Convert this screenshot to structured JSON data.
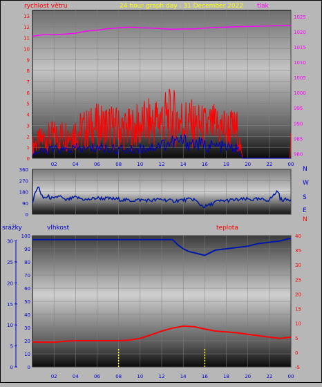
{
  "header": {
    "wind_title": "rychlost větru",
    "graph_title": "24 hour graph day : 31 December 2022",
    "pressure_title": "tlak"
  },
  "colors": {
    "wind": "#ff0000",
    "gust": "#ff0000",
    "wind_avg": "#0000c8",
    "pressure": "#ff00ff",
    "direction": "#001a9c",
    "humidity": "#0018a8",
    "temperature": "#ff0000",
    "rain": "#ffff00",
    "grid": "#7f7f7f"
  },
  "chart_data": [
    {
      "type": "line",
      "title": "24 hour graph day : 31 December 2022",
      "ylabel": "rychlost větru",
      "y2label": "tlak",
      "x_ticks": [
        "02",
        "04",
        "06",
        "08",
        "10",
        "12",
        "14",
        "16",
        "18",
        "20",
        "22",
        "00"
      ],
      "y_ticks": [
        0,
        1,
        2,
        3,
        4,
        5,
        6,
        7,
        8,
        9,
        10,
        11,
        12,
        13
      ],
      "y2_ticks": [
        980,
        985,
        990,
        995,
        1000,
        1005,
        1010,
        1015,
        1020,
        1025
      ],
      "ylim": [
        0,
        13.5
      ],
      "y2lim": [
        978.5,
        1027
      ],
      "grid": true,
      "series": [
        {
          "name": "tlak",
          "axis": "right",
          "x": [
            0,
            1,
            2,
            3,
            4,
            5,
            6,
            7,
            8,
            9,
            10,
            11,
            12,
            13,
            14,
            15,
            16,
            17,
            18,
            19,
            20,
            21,
            22,
            23,
            24
          ],
          "values": [
            1018.5,
            1019,
            1019,
            1019.2,
            1019.5,
            1020.2,
            1020.5,
            1021,
            1021.3,
            1021.5,
            1021.3,
            1021.2,
            1021,
            1020.8,
            1020.9,
            1020.9,
            1021.2,
            1021.4,
            1021.5,
            1021.6,
            1021.7,
            1021.8,
            1021.9,
            1022,
            1022.1
          ]
        },
        {
          "name": "gust",
          "axis": "left",
          "style": "spiky",
          "x": [
            0,
            1,
            2,
            3,
            4,
            5,
            6,
            7,
            8,
            9,
            10,
            11,
            12,
            13,
            14,
            15,
            16,
            17,
            18,
            19,
            19.5,
            20,
            21,
            22,
            23,
            23.9,
            24
          ],
          "values": [
            1.5,
            2.2,
            2.5,
            2.7,
            3.0,
            3.3,
            3.6,
            3.7,
            3.4,
            3.3,
            3.7,
            4.0,
            4.5,
            4.6,
            4.2,
            3.8,
            3.5,
            3.6,
            3.4,
            3.2,
            0,
            0,
            0,
            0,
            0,
            0,
            2.2
          ]
        },
        {
          "name": "average",
          "axis": "left",
          "x": [
            0,
            1,
            2,
            3,
            4,
            5,
            6,
            7,
            8,
            9,
            10,
            11,
            12,
            13,
            14,
            15,
            16,
            17,
            18,
            19,
            19.5,
            20,
            21,
            22,
            23,
            24
          ],
          "values": [
            0.5,
            0.7,
            0.9,
            0.8,
            1.0,
            0.9,
            1.1,
            1.0,
            0.9,
            0.8,
            1.0,
            1.1,
            1.4,
            1.6,
            1.7,
            1.5,
            1.3,
            1.2,
            1.1,
            1.0,
            0,
            0,
            0,
            0,
            0,
            0
          ]
        }
      ]
    },
    {
      "type": "line",
      "title": "",
      "y_ticks": [
        0,
        90,
        180,
        270,
        360
      ],
      "y2_ticks": [
        "N",
        "W",
        "S",
        "E",
        "N"
      ],
      "ylim": [
        0,
        360
      ],
      "grid": true,
      "series": [
        {
          "name": "direction",
          "x": [
            0,
            0.3,
            0.6,
            0.8,
            1,
            1.5,
            2,
            2.5,
            3,
            4,
            5,
            6,
            7,
            8,
            9,
            10,
            11,
            12,
            13,
            14,
            15,
            15.5,
            16,
            16.5,
            17,
            18,
            19,
            20,
            21,
            22,
            22.8,
            23,
            23.5,
            24
          ],
          "values": [
            100,
            180,
            225,
            150,
            130,
            140,
            120,
            150,
            110,
            135,
            115,
            130,
            125,
            120,
            110,
            115,
            110,
            120,
            105,
            115,
            120,
            80,
            60,
            75,
            100,
            110,
            115,
            120,
            118,
            115,
            190,
            120,
            115,
            120
          ]
        }
      ]
    },
    {
      "type": "line",
      "title": "",
      "ylabel": "vlhkost",
      "y3label": "srážky",
      "y2label": "teplota",
      "x_ticks": [
        "02",
        "04",
        "06",
        "08",
        "10",
        "12",
        "14",
        "16",
        "18",
        "20",
        "22",
        "00"
      ],
      "y_ticks": [
        0,
        10,
        20,
        30,
        40,
        50,
        60,
        70,
        80,
        90,
        100
      ],
      "y3_ticks": [
        0,
        5,
        10,
        15,
        20,
        25,
        30
      ],
      "y2_ticks": [
        -5,
        0,
        5,
        10,
        15,
        20,
        25,
        30,
        35,
        40
      ],
      "ylim": [
        0,
        100
      ],
      "y2lim": [
        -5,
        40
      ],
      "grid": true,
      "series": [
        {
          "name": "vlhkost",
          "axis": "left",
          "x": [
            0,
            2,
            4,
            6,
            8,
            10,
            12,
            13,
            13.5,
            14,
            14.5,
            15,
            15.5,
            16,
            16.5,
            17,
            18,
            19,
            20,
            21,
            22,
            23,
            23.5,
            24
          ],
          "values": [
            97,
            97,
            97,
            97,
            97,
            97,
            97,
            97,
            93,
            90,
            88,
            87,
            86,
            85,
            87,
            89,
            90,
            91,
            92,
            94,
            95,
            96,
            97,
            98
          ]
        },
        {
          "name": "teplota",
          "axis": "right",
          "x": [
            0,
            1,
            2,
            3,
            4,
            5,
            6,
            7,
            8,
            9,
            10,
            11,
            12,
            13,
            14,
            15,
            16,
            17,
            18,
            19,
            20,
            21,
            22,
            23,
            24
          ],
          "values": [
            3.6,
            3.5,
            3.5,
            3.8,
            4.0,
            4.0,
            4.0,
            4.0,
            4.0,
            4.2,
            4.8,
            6.0,
            7.3,
            8.3,
            9.0,
            8.8,
            8.0,
            7.3,
            7.0,
            6.7,
            6.2,
            5.7,
            5.2,
            4.8,
            5.2
          ]
        },
        {
          "name": "srážky",
          "axis": "left-outer",
          "style": "bar",
          "x": [
            8.0,
            16.0
          ],
          "values": [
            4.5,
            4.5
          ]
        }
      ]
    }
  ]
}
